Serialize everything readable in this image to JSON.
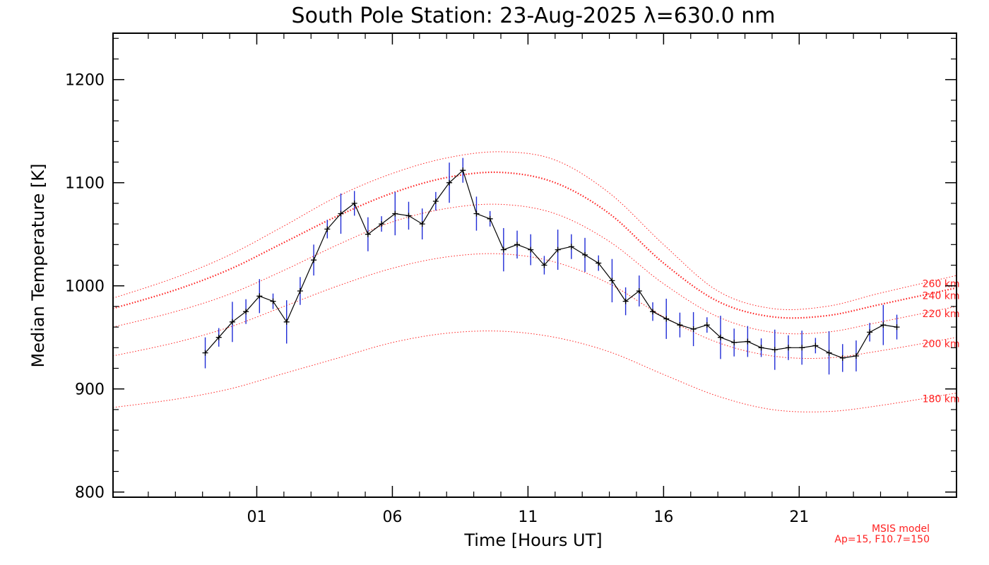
{
  "chart_data": {
    "type": "line",
    "title": "South Pole Station: 23-Aug-2025 λ=630.0 nm",
    "xlabel": "Time [Hours UT]",
    "ylabel": "Median Temperature [K]",
    "xlim": [
      -4.3,
      26.8
    ],
    "ylim": [
      795,
      1245
    ],
    "x_ticks": [
      {
        "value": 1,
        "label": "01"
      },
      {
        "value": 6,
        "label": "06"
      },
      {
        "value": 11,
        "label": "11"
      },
      {
        "value": 16,
        "label": "16"
      },
      {
        "value": 21,
        "label": "21"
      }
    ],
    "y_ticks": [
      {
        "value": 800,
        "label": "800"
      },
      {
        "value": 900,
        "label": "900"
      },
      {
        "value": 1000,
        "label": "1000"
      },
      {
        "value": 1100,
        "label": "1100"
      },
      {
        "value": 1200,
        "label": "1200"
      }
    ],
    "series": [
      {
        "name": "Median Temperature",
        "color": "#000000",
        "error_color": "#1f2bd6",
        "error_bar_halfwidth": 15,
        "x": [
          -0.9,
          -0.4,
          0.1,
          0.6,
          1.1,
          1.6,
          2.1,
          2.6,
          3.1,
          3.6,
          4.1,
          4.6,
          5.1,
          5.6,
          6.1,
          6.6,
          7.1,
          7.6,
          8.1,
          8.6,
          9.1,
          9.6,
          10.1,
          10.6,
          11.1,
          11.6,
          12.1,
          12.6,
          13.1,
          13.6,
          14.1,
          14.6,
          15.1,
          15.6,
          16.1,
          16.6,
          17.1,
          17.6,
          18.1,
          18.6,
          19.1,
          19.6,
          20.1,
          20.6,
          21.1,
          21.6,
          22.1,
          22.6,
          23.1,
          23.6,
          24.1,
          24.6
        ],
        "y": [
          935,
          950,
          965,
          975,
          990,
          985,
          965,
          995,
          1025,
          1055,
          1070,
          1080,
          1050,
          1060,
          1070,
          1068,
          1060,
          1082,
          1100,
          1112,
          1070,
          1065,
          1035,
          1040,
          1035,
          1020,
          1035,
          1038,
          1030,
          1022,
          1005,
          985,
          995,
          975,
          968,
          962,
          958,
          962,
          950,
          945,
          946,
          940,
          938,
          940,
          940,
          942,
          935,
          930,
          932,
          955,
          962,
          960
        ]
      }
    ],
    "msis_model_curves": [
      {
        "label": "260 km",
        "color": "#ff2020",
        "x": [
          -4.3,
          -2,
          0,
          2,
          4,
          6,
          8,
          10,
          12,
          14,
          16,
          18,
          20,
          22,
          24,
          26.8
        ],
        "y": [
          988,
          1008,
          1030,
          1058,
          1087,
          1109,
          1124,
          1130,
          1122,
          1090,
          1040,
          995,
          978,
          980,
          993,
          1010
        ]
      },
      {
        "label": "240 km",
        "color": "#ff2020",
        "x": [
          -4.3,
          -2,
          0,
          2,
          4,
          6,
          8,
          10,
          12,
          14,
          16,
          18,
          20,
          22,
          24,
          26.8
        ],
        "y": [
          978,
          996,
          1016,
          1042,
          1068,
          1090,
          1105,
          1110,
          1100,
          1070,
          1022,
          985,
          970,
          971,
          982,
          998
        ]
      },
      {
        "label": "220 km",
        "color": "#ff2020",
        "x": [
          -4.3,
          -2,
          0,
          2,
          4,
          6,
          8,
          10,
          12,
          14,
          16,
          18,
          20,
          22,
          24,
          26.8
        ],
        "y": [
          960,
          975,
          992,
          1015,
          1040,
          1062,
          1075,
          1079,
          1070,
          1043,
          1002,
          970,
          955,
          955,
          965,
          980
        ]
      },
      {
        "label": "200 km",
        "color": "#ff2020",
        "x": [
          -4.3,
          -2,
          0,
          2,
          4,
          6,
          8,
          10,
          12,
          14,
          16,
          18,
          20,
          22,
          24,
          26.8
        ],
        "y": [
          932,
          945,
          960,
          980,
          1000,
          1017,
          1028,
          1031,
          1023,
          1002,
          970,
          945,
          932,
          930,
          937,
          950
        ]
      },
      {
        "label": "180 km",
        "color": "#ff2020",
        "x": [
          -4.3,
          -2,
          0,
          2,
          4,
          6,
          8,
          10,
          12,
          14,
          16,
          18,
          20,
          22,
          24,
          26.8
        ],
        "y": [
          882,
          890,
          900,
          915,
          930,
          945,
          954,
          956,
          950,
          936,
          914,
          893,
          880,
          878,
          884,
          896
        ]
      }
    ],
    "annotations": [
      {
        "text": "MSIS model",
        "color": "#ff2020"
      },
      {
        "text": "Ap=15, F10.7=150",
        "color": "#ff2020"
      }
    ]
  }
}
